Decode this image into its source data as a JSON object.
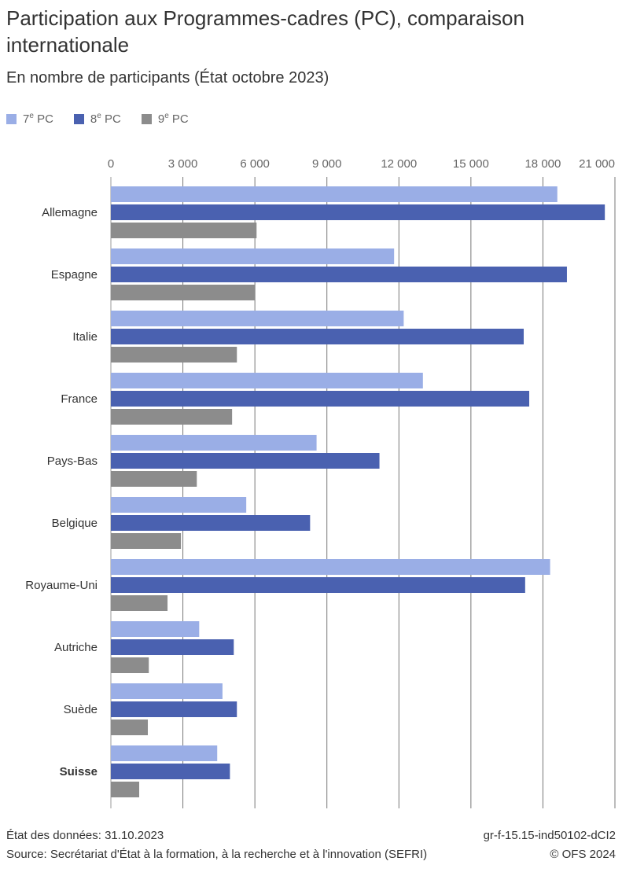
{
  "title": "Participation aux Programmes-cadres (PC), comparaison internationale",
  "subtitle": "En nombre de participants (État octobre 2023)",
  "footer": {
    "date": "État des données: 31.10.2023",
    "source": "Source: Secrétariat d'État à la formation, à la recherche et à l'innovation (SEFRI)",
    "code": "gr-f-15.15-ind50102-dCI2",
    "copyright": "© OFS 2024"
  },
  "chart_data": {
    "type": "bar",
    "orientation": "horizontal",
    "categories": [
      "Allemagne",
      "Espagne",
      "Italie",
      "France",
      "Pays-Bas",
      "Belgique",
      "Royaume-Uni",
      "Autriche",
      "Suède",
      "Suisse"
    ],
    "highlighted_category": "Suisse",
    "series": [
      {
        "name": "7e PC",
        "name_base": "7",
        "name_sup": "e",
        "name_rest": " PC",
        "color": "#9aaee6",
        "values": [
          18600,
          11800,
          12200,
          13000,
          8570,
          5640,
          18300,
          3680,
          4650,
          4430
        ]
      },
      {
        "name": "8e PC",
        "name_base": "8",
        "name_sup": "e",
        "name_rest": " PC",
        "color": "#4a61b0",
        "values": [
          20580,
          19000,
          17200,
          17430,
          11190,
          8300,
          17260,
          5120,
          5250,
          4960
        ]
      },
      {
        "name": "9e PC",
        "name_base": "9",
        "name_sup": "e",
        "name_rest": " PC",
        "color": "#8c8c8c",
        "values": [
          6070,
          6000,
          5250,
          5050,
          3580,
          2920,
          2360,
          1580,
          1540,
          1180
        ]
      }
    ],
    "xlim": [
      0,
      21000
    ],
    "xticks": [
      0,
      3000,
      6000,
      9000,
      12000,
      15000,
      18000,
      21000
    ],
    "xtick_labels": [
      "0",
      "3 000",
      "6 000",
      "9 000",
      "12 000",
      "15 000",
      "18 000",
      "21 000"
    ],
    "axis_position": "top",
    "grid": true,
    "legend_position": "top-left"
  }
}
